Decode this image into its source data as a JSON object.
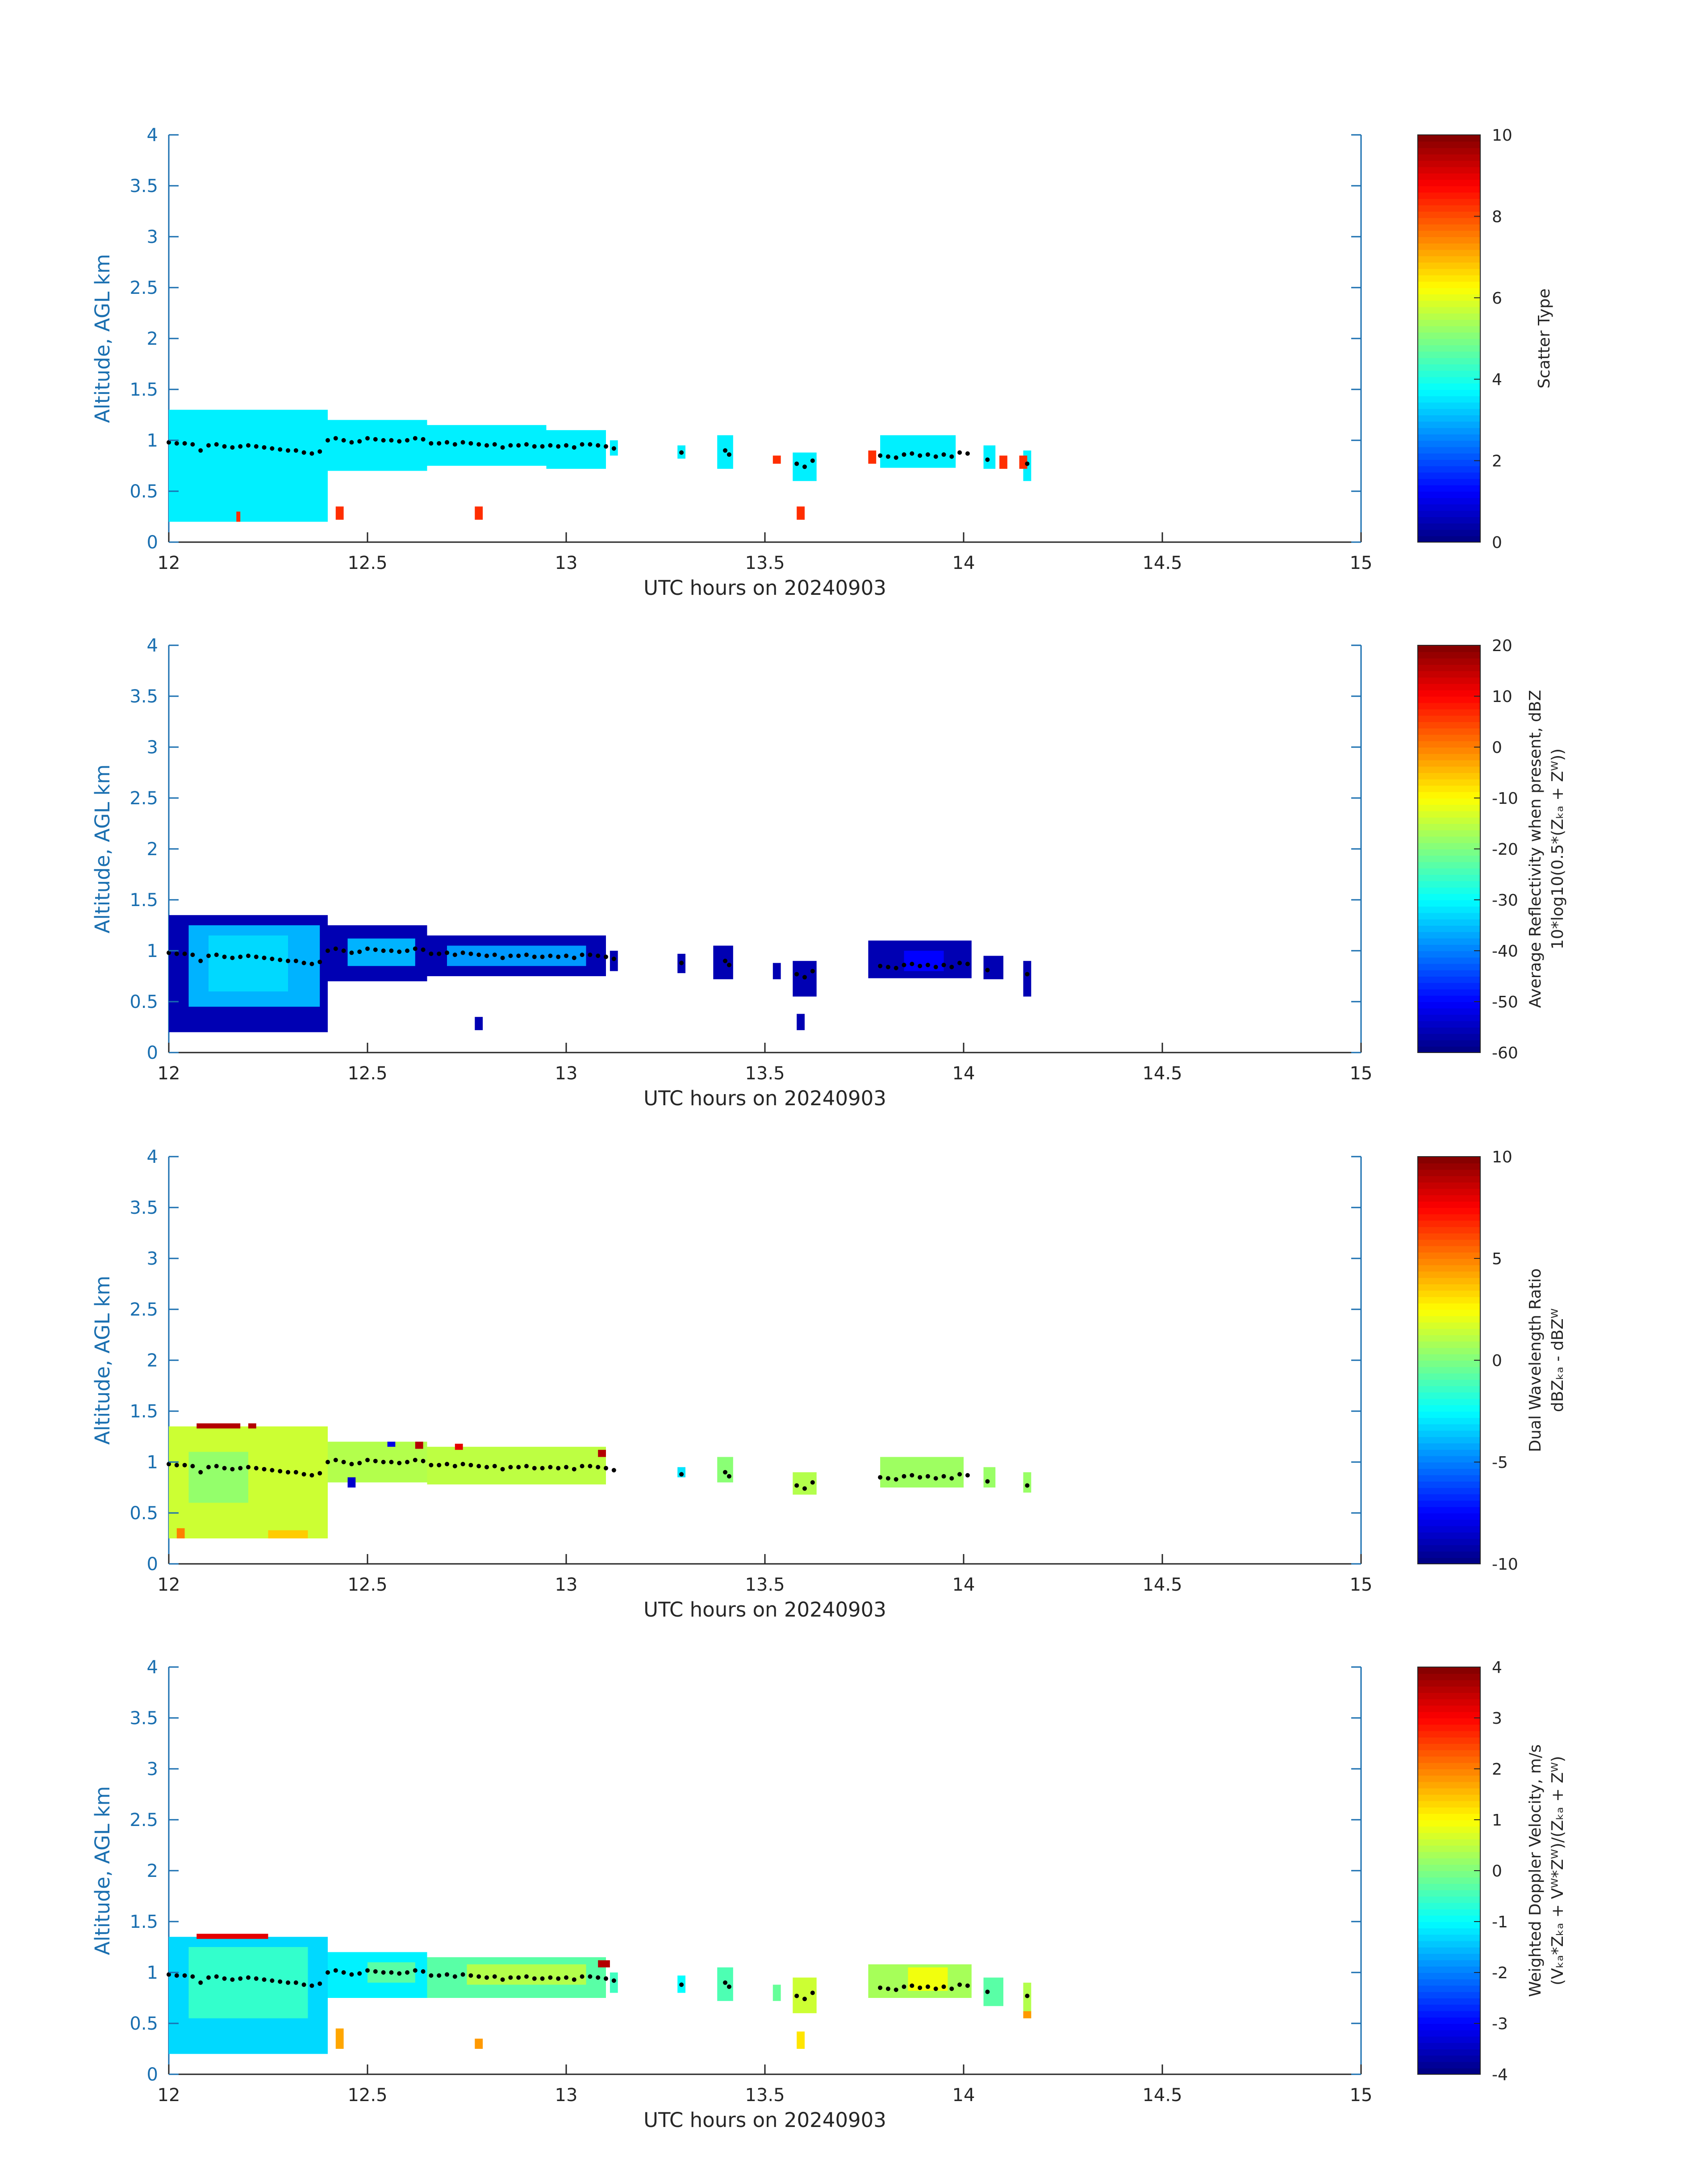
{
  "figure": {
    "panels": [
      {
        "colorbar_title_line1": "Scatter Type",
        "colorbar_title_line2": ""
      },
      {
        "colorbar_title_line1": "Average Reflectivity when present, dBZ",
        "colorbar_title_line2": "10*log10(0.5*(Zₖₐ + Zᵂ))"
      },
      {
        "colorbar_title_line1": "Dual Wavelength Ratio",
        "colorbar_title_line2": "dBZₖₐ - dBZᵂ"
      },
      {
        "colorbar_title_line1": "Weighted Doppler Velocity, m/s",
        "colorbar_title_line2": "(Vₖₐ*Zₖₐ + Vᵂ*Zᵂ)/(Zₖₐ + Zᵂ)"
      }
    ]
  },
  "chart_data": [
    {
      "type": "heatmap",
      "xlabel": "UTC hours on 20240903",
      "ylabel": "Altitude, AGL km",
      "xlim": [
        12,
        15
      ],
      "ylim": [
        0,
        4
      ],
      "xticks": [
        "12",
        "12.5",
        "13",
        "13.5",
        "14",
        "14.5",
        "15"
      ],
      "yticks": [
        "0",
        "0.5",
        "1",
        "1.5",
        "2",
        "2.5",
        "3",
        "3.5",
        "4"
      ],
      "colorbar": {
        "label": "Scatter Type",
        "range": [
          0,
          10
        ],
        "ticks": [
          "0",
          "2",
          "4",
          "6",
          "8",
          "10"
        ],
        "colormap": "jet"
      },
      "cells": [
        {
          "x0": 12.0,
          "x1": 12.4,
          "y0": 0.2,
          "y1": 1.3,
          "value": 3.6
        },
        {
          "x0": 12.4,
          "x1": 12.65,
          "y0": 0.7,
          "y1": 1.2,
          "value": 3.6
        },
        {
          "x0": 12.65,
          "x1": 12.95,
          "y0": 0.75,
          "y1": 1.15,
          "value": 3.6
        },
        {
          "x0": 12.95,
          "x1": 13.1,
          "y0": 0.72,
          "y1": 1.1,
          "value": 3.6
        },
        {
          "x0": 13.11,
          "x1": 13.13,
          "y0": 0.85,
          "y1": 1.0,
          "value": 3.6
        },
        {
          "x0": 13.28,
          "x1": 13.3,
          "y0": 0.82,
          "y1": 0.95,
          "value": 3.6
        },
        {
          "x0": 13.38,
          "x1": 13.42,
          "y0": 0.72,
          "y1": 1.05,
          "value": 3.6
        },
        {
          "x0": 13.57,
          "x1": 13.63,
          "y0": 0.6,
          "y1": 0.88,
          "value": 3.6
        },
        {
          "x0": 13.79,
          "x1": 13.98,
          "y0": 0.73,
          "y1": 1.05,
          "value": 3.6
        },
        {
          "x0": 14.05,
          "x1": 14.08,
          "y0": 0.72,
          "y1": 0.95,
          "value": 3.6
        },
        {
          "x0": 14.15,
          "x1": 14.17,
          "y0": 0.6,
          "y1": 0.9,
          "value": 3.6
        },
        {
          "x0": 12.17,
          "x1": 12.18,
          "y0": 0.2,
          "y1": 0.3,
          "value": 8.3
        },
        {
          "x0": 12.42,
          "x1": 12.44,
          "y0": 0.22,
          "y1": 0.35,
          "value": 8.3
        },
        {
          "x0": 12.77,
          "x1": 12.79,
          "y0": 0.22,
          "y1": 0.35,
          "value": 8.3
        },
        {
          "x0": 13.52,
          "x1": 13.54,
          "y0": 0.77,
          "y1": 0.85,
          "value": 8.3
        },
        {
          "x0": 13.58,
          "x1": 13.6,
          "y0": 0.22,
          "y1": 0.35,
          "value": 8.3
        },
        {
          "x0": 13.76,
          "x1": 13.78,
          "y0": 0.77,
          "y1": 0.9,
          "value": 8.3
        },
        {
          "x0": 14.09,
          "x1": 14.11,
          "y0": 0.72,
          "y1": 0.85,
          "value": 8.3
        },
        {
          "x0": 14.14,
          "x1": 14.16,
          "y0": 0.72,
          "y1": 0.85,
          "value": 8.3
        }
      ]
    },
    {
      "type": "heatmap",
      "xlabel": "UTC hours on 20240903",
      "ylabel": "Altitude, AGL km",
      "xlim": [
        12,
        15
      ],
      "ylim": [
        0,
        4
      ],
      "xticks": [
        "12",
        "12.5",
        "13",
        "13.5",
        "14",
        "14.5",
        "15"
      ],
      "yticks": [
        "0",
        "0.5",
        "1",
        "1.5",
        "2",
        "2.5",
        "3",
        "3.5",
        "4"
      ],
      "colorbar": {
        "label": "Average Reflectivity when present, dBZ",
        "range": [
          -60,
          20
        ],
        "ticks": [
          "-60",
          "-50",
          "-40",
          "-30",
          "-20",
          "-10",
          "0",
          "10",
          "20"
        ],
        "colormap": "jet"
      },
      "cells": [
        {
          "x0": 12.0,
          "x1": 12.4,
          "y0": 0.2,
          "y1": 1.35,
          "value": -56
        },
        {
          "x0": 12.05,
          "x1": 12.38,
          "y0": 0.45,
          "y1": 1.25,
          "value": -36
        },
        {
          "x0": 12.1,
          "x1": 12.3,
          "y0": 0.6,
          "y1": 1.15,
          "value": -33
        },
        {
          "x0": 12.4,
          "x1": 12.65,
          "y0": 0.7,
          "y1": 1.25,
          "value": -56
        },
        {
          "x0": 12.45,
          "x1": 12.62,
          "y0": 0.85,
          "y1": 1.12,
          "value": -36
        },
        {
          "x0": 12.65,
          "x1": 13.1,
          "y0": 0.75,
          "y1": 1.15,
          "value": -56
        },
        {
          "x0": 12.7,
          "x1": 13.05,
          "y0": 0.85,
          "y1": 1.05,
          "value": -38
        },
        {
          "x0": 13.11,
          "x1": 13.13,
          "y0": 0.8,
          "y1": 1.0,
          "value": -56
        },
        {
          "x0": 13.28,
          "x1": 13.3,
          "y0": 0.78,
          "y1": 0.97,
          "value": -56
        },
        {
          "x0": 13.37,
          "x1": 13.42,
          "y0": 0.72,
          "y1": 1.05,
          "value": -56
        },
        {
          "x0": 13.52,
          "x1": 13.54,
          "y0": 0.72,
          "y1": 0.88,
          "value": -56
        },
        {
          "x0": 13.57,
          "x1": 13.63,
          "y0": 0.55,
          "y1": 0.9,
          "value": -56
        },
        {
          "x0": 13.58,
          "x1": 13.6,
          "y0": 0.22,
          "y1": 0.38,
          "value": -56
        },
        {
          "x0": 12.77,
          "x1": 12.79,
          "y0": 0.22,
          "y1": 0.35,
          "value": -56
        },
        {
          "x0": 13.76,
          "x1": 14.02,
          "y0": 0.73,
          "y1": 1.1,
          "value": -56
        },
        {
          "x0": 13.85,
          "x1": 13.95,
          "y0": 0.8,
          "y1": 1.0,
          "value": -50
        },
        {
          "x0": 14.05,
          "x1": 14.1,
          "y0": 0.72,
          "y1": 0.95,
          "value": -56
        },
        {
          "x0": 14.15,
          "x1": 14.17,
          "y0": 0.55,
          "y1": 0.9,
          "value": -56
        }
      ]
    },
    {
      "type": "heatmap",
      "xlabel": "UTC hours on 20240903",
      "ylabel": "Altitude, AGL km",
      "xlim": [
        12,
        15
      ],
      "ylim": [
        0,
        4
      ],
      "xticks": [
        "12",
        "12.5",
        "13",
        "13.5",
        "14",
        "14.5",
        "15"
      ],
      "yticks": [
        "0",
        "0.5",
        "1",
        "1.5",
        "2",
        "2.5",
        "3",
        "3.5",
        "4"
      ],
      "colorbar": {
        "label": "Dual Wavelength Ratio",
        "range": [
          -10,
          10
        ],
        "ticks": [
          "-10",
          "-5",
          "0",
          "5",
          "10"
        ],
        "colormap": "jet"
      },
      "cells": [
        {
          "x0": 12.0,
          "x1": 12.4,
          "y0": 0.25,
          "y1": 1.35,
          "value": 1.5
        },
        {
          "x0": 12.05,
          "x1": 12.2,
          "y0": 0.6,
          "y1": 1.1,
          "value": 0.4
        },
        {
          "x0": 12.4,
          "x1": 12.65,
          "y0": 0.8,
          "y1": 1.2,
          "value": 1.0
        },
        {
          "x0": 12.65,
          "x1": 13.1,
          "y0": 0.78,
          "y1": 1.15,
          "value": 1.2
        },
        {
          "x0": 12.07,
          "x1": 12.18,
          "y0": 1.33,
          "y1": 1.38,
          "value": 9.0
        },
        {
          "x0": 12.2,
          "x1": 12.22,
          "y0": 1.33,
          "y1": 1.38,
          "value": 9.0
        },
        {
          "x0": 12.02,
          "x1": 12.04,
          "y0": 0.25,
          "y1": 0.35,
          "value": 5.0
        },
        {
          "x0": 12.25,
          "x1": 12.35,
          "y0": 0.25,
          "y1": 0.33,
          "value": 3.5
        },
        {
          "x0": 12.45,
          "x1": 12.47,
          "y0": 0.75,
          "y1": 0.85,
          "value": -8.5
        },
        {
          "x0": 12.55,
          "x1": 12.57,
          "y0": 1.15,
          "y1": 1.2,
          "value": -8.0
        },
        {
          "x0": 12.62,
          "x1": 12.64,
          "y0": 1.13,
          "y1": 1.2,
          "value": 9.0
        },
        {
          "x0": 12.72,
          "x1": 12.74,
          "y0": 1.12,
          "y1": 1.18,
          "value": 8.0
        },
        {
          "x0": 13.08,
          "x1": 13.1,
          "y0": 1.05,
          "y1": 1.12,
          "value": 9.0
        },
        {
          "x0": 13.28,
          "x1": 13.3,
          "y0": 0.85,
          "y1": 0.95,
          "value": -3.0
        },
        {
          "x0": 13.38,
          "x1": 13.42,
          "y0": 0.8,
          "y1": 1.05,
          "value": 0.2
        },
        {
          "x0": 13.57,
          "x1": 13.63,
          "y0": 0.68,
          "y1": 0.9,
          "value": 1.0
        },
        {
          "x0": 13.79,
          "x1": 14.0,
          "y0": 0.75,
          "y1": 1.05,
          "value": 0.6
        },
        {
          "x0": 14.05,
          "x1": 14.08,
          "y0": 0.75,
          "y1": 0.95,
          "value": 0.5
        },
        {
          "x0": 14.15,
          "x1": 14.17,
          "y0": 0.7,
          "y1": 0.9,
          "value": 0.5
        }
      ]
    },
    {
      "type": "heatmap",
      "xlabel": "UTC hours on 20240903",
      "ylabel": "Altitude, AGL km",
      "xlim": [
        12,
        15
      ],
      "ylim": [
        0,
        4
      ],
      "xticks": [
        "12",
        "12.5",
        "13",
        "13.5",
        "14",
        "14.5",
        "15"
      ],
      "yticks": [
        "0",
        "0.5",
        "1",
        "1.5",
        "2",
        "2.5",
        "3",
        "3.5",
        "4"
      ],
      "colorbar": {
        "label": "Weighted Doppler Velocity, m/s",
        "range": [
          -4,
          4
        ],
        "ticks": [
          "-4",
          "-3",
          "-2",
          "-1",
          "0",
          "1",
          "2",
          "3",
          "4"
        ],
        "colormap": "jet"
      },
      "cells": [
        {
          "x0": 12.0,
          "x1": 12.4,
          "y0": 0.2,
          "y1": 1.35,
          "value": -1.3
        },
        {
          "x0": 12.05,
          "x1": 12.35,
          "y0": 0.55,
          "y1": 1.25,
          "value": -0.6
        },
        {
          "x0": 12.4,
          "x1": 12.65,
          "y0": 0.75,
          "y1": 1.2,
          "value": -1.1
        },
        {
          "x0": 12.5,
          "x1": 12.62,
          "y0": 0.9,
          "y1": 1.1,
          "value": -0.3
        },
        {
          "x0": 12.65,
          "x1": 13.1,
          "y0": 0.75,
          "y1": 1.15,
          "value": -0.3
        },
        {
          "x0": 12.75,
          "x1": 13.05,
          "y0": 0.88,
          "y1": 1.08,
          "value": 0.4
        },
        {
          "x0": 12.07,
          "x1": 12.25,
          "y0": 1.33,
          "y1": 1.38,
          "value": 3.2
        },
        {
          "x0": 12.42,
          "x1": 12.44,
          "y0": 0.25,
          "y1": 0.45,
          "value": 1.7
        },
        {
          "x0": 12.77,
          "x1": 12.79,
          "y0": 0.25,
          "y1": 0.35,
          "value": 1.8
        },
        {
          "x0": 13.08,
          "x1": 13.11,
          "y0": 1.05,
          "y1": 1.12,
          "value": 3.6
        },
        {
          "x0": 13.11,
          "x1": 13.13,
          "y0": 0.8,
          "y1": 1.0,
          "value": -0.5
        },
        {
          "x0": 13.28,
          "x1": 13.3,
          "y0": 0.8,
          "y1": 0.97,
          "value": -1.0
        },
        {
          "x0": 13.38,
          "x1": 13.42,
          "y0": 0.72,
          "y1": 1.05,
          "value": -0.4
        },
        {
          "x0": 13.52,
          "x1": 13.54,
          "y0": 0.72,
          "y1": 0.88,
          "value": -0.2
        },
        {
          "x0": 13.57,
          "x1": 13.63,
          "y0": 0.6,
          "y1": 0.95,
          "value": 0.6
        },
        {
          "x0": 13.58,
          "x1": 13.6,
          "y0": 0.25,
          "y1": 0.42,
          "value": 1.2
        },
        {
          "x0": 13.76,
          "x1": 14.02,
          "y0": 0.75,
          "y1": 1.08,
          "value": 0.3
        },
        {
          "x0": 13.86,
          "x1": 13.96,
          "y0": 0.82,
          "y1": 1.05,
          "value": 0.9
        },
        {
          "x0": 14.05,
          "x1": 14.1,
          "y0": 0.67,
          "y1": 0.95,
          "value": -0.3
        },
        {
          "x0": 14.15,
          "x1": 14.17,
          "y0": 0.55,
          "y1": 0.9,
          "value": 0.4
        },
        {
          "x0": 14.15,
          "x1": 14.17,
          "y0": 0.55,
          "y1": 0.62,
          "value": 1.8
        }
      ]
    }
  ],
  "cloud_base_dots": {
    "x": [
      12.0,
      12.02,
      12.04,
      12.06,
      12.08,
      12.1,
      12.12,
      12.14,
      12.16,
      12.18,
      12.2,
      12.22,
      12.24,
      12.26,
      12.28,
      12.3,
      12.32,
      12.34,
      12.36,
      12.38,
      12.4,
      12.42,
      12.44,
      12.46,
      12.48,
      12.5,
      12.52,
      12.54,
      12.56,
      12.58,
      12.6,
      12.62,
      12.64,
      12.66,
      12.68,
      12.7,
      12.72,
      12.74,
      12.76,
      12.78,
      12.8,
      12.82,
      12.84,
      12.86,
      12.88,
      12.9,
      12.92,
      12.94,
      12.96,
      12.98,
      13.0,
      13.02,
      13.04,
      13.06,
      13.08,
      13.1,
      13.12,
      13.29,
      13.4,
      13.41,
      13.58,
      13.6,
      13.62,
      13.79,
      13.81,
      13.83,
      13.85,
      13.87,
      13.89,
      13.91,
      13.93,
      13.95,
      13.97,
      13.99,
      14.01,
      14.06,
      14.16
    ],
    "y": [
      0.98,
      0.97,
      0.97,
      0.96,
      0.9,
      0.95,
      0.96,
      0.94,
      0.93,
      0.94,
      0.95,
      0.94,
      0.93,
      0.92,
      0.91,
      0.9,
      0.9,
      0.88,
      0.87,
      0.89,
      1.0,
      1.02,
      1.0,
      0.98,
      0.99,
      1.02,
      1.01,
      1.0,
      1.0,
      0.99,
      1.0,
      1.02,
      1.01,
      0.97,
      0.97,
      0.98,
      0.96,
      0.98,
      0.97,
      0.96,
      0.95,
      0.96,
      0.93,
      0.95,
      0.95,
      0.96,
      0.94,
      0.94,
      0.95,
      0.94,
      0.95,
      0.93,
      0.96,
      0.96,
      0.95,
      0.94,
      0.92,
      0.88,
      0.9,
      0.86,
      0.77,
      0.74,
      0.8,
      0.85,
      0.84,
      0.83,
      0.86,
      0.87,
      0.85,
      0.86,
      0.84,
      0.86,
      0.84,
      0.88,
      0.87,
      0.81,
      0.77
    ]
  }
}
